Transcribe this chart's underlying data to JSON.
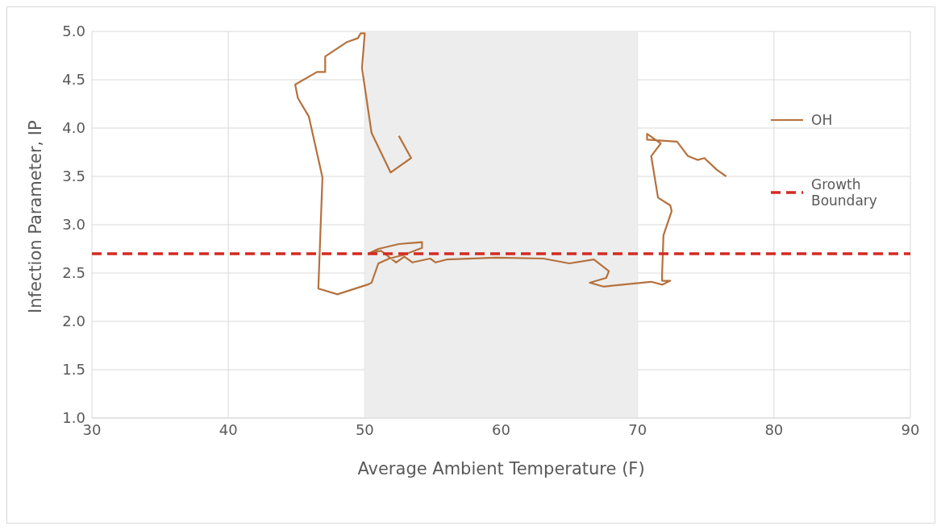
{
  "chart_data": {
    "type": "line",
    "xlabel": "Average Ambient Temperature (F)",
    "ylabel": "Infection Parameter, IP",
    "series": [
      {
        "name": "OH",
        "color": "#b5713d",
        "x": [
          52.5,
          53.4,
          51.9,
          50.5,
          49.8,
          50.0,
          49.7,
          49.5,
          48.7,
          47.1,
          47.1,
          46.5,
          44.9,
          45.1,
          45.9,
          46.9,
          46.6,
          48.0,
          50.2,
          50.5,
          51.0,
          51.8,
          52.9,
          54.2,
          54.2,
          52.5,
          51.0,
          50.4,
          51.2,
          52.3,
          52.9,
          53.5,
          54.8,
          55.2,
          56.0,
          59.6,
          63.1,
          65.0,
          66.8,
          67.9,
          67.7,
          66.5,
          67.5,
          71.0,
          71.8,
          72.4,
          71.8,
          71.8,
          71.9,
          72.5,
          72.4,
          71.5,
          71.0,
          71.7,
          70.7,
          70.7,
          72.9,
          73.7,
          74.4,
          74.9,
          75.8,
          76.5
        ],
        "values": [
          3.92,
          3.69,
          3.54,
          3.95,
          4.62,
          4.98,
          4.98,
          4.93,
          4.89,
          4.74,
          4.58,
          4.58,
          4.45,
          4.31,
          4.12,
          3.49,
          2.34,
          2.28,
          2.38,
          2.4,
          2.6,
          2.65,
          2.69,
          2.76,
          2.82,
          2.8,
          2.75,
          2.71,
          2.73,
          2.61,
          2.67,
          2.61,
          2.65,
          2.61,
          2.64,
          2.66,
          2.65,
          2.6,
          2.64,
          2.52,
          2.45,
          2.4,
          2.36,
          2.41,
          2.38,
          2.42,
          2.42,
          2.49,
          2.89,
          3.14,
          3.2,
          3.28,
          3.71,
          3.84,
          3.94,
          3.88,
          3.86,
          3.71,
          3.67,
          3.69,
          3.57,
          3.5
        ]
      }
    ],
    "ref_lines": [
      {
        "axis": "y",
        "value": 2.7,
        "label": "Growth Boundary",
        "color": "#d42a22",
        "line_style": "dashed"
      }
    ],
    "bands": [
      {
        "axis": "x",
        "from": 50,
        "to": 70,
        "color": "#ededed"
      }
    ],
    "xlim": [
      30,
      90
    ],
    "xticks": [
      30,
      40,
      50,
      60,
      70,
      80,
      90
    ],
    "ylim": [
      1,
      5
    ],
    "yticks": [
      {
        "value": 1,
        "label": "1.0"
      },
      {
        "value": 1.5,
        "label": "1.5"
      },
      {
        "value": 2,
        "label": "2.0"
      },
      {
        "value": 2.5,
        "label": "2.5"
      },
      {
        "value": 3,
        "label": "3.0"
      },
      {
        "value": 3.5,
        "label": "3.5"
      },
      {
        "value": 4,
        "label": "4.0"
      },
      {
        "value": 4.5,
        "label": "4.5"
      },
      {
        "value": 5,
        "label": "5.0"
      }
    ],
    "grid": true,
    "legend": "right",
    "marker": "none",
    "line_style": "solid"
  }
}
